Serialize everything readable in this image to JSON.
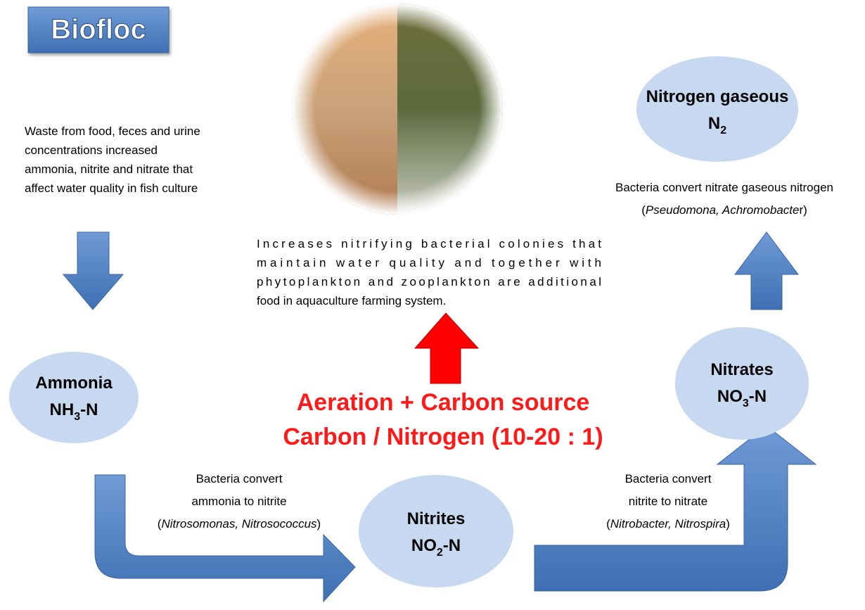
{
  "title": "Biofloc",
  "intro": [
    "Waste from food, feces and urine",
    "concentrations increased",
    "ammonia, nitrite and nitrate that",
    "affect water quality in fish culture"
  ],
  "center_text": [
    "Increases nitrifying bacterial colonies that",
    "maintain water quality and together with",
    "phytoplankton and zooplankton are additional",
    "food in aquaculture farming system."
  ],
  "conditions": [
    "Aeration + Carbon source",
    "Carbon / Nitrogen (10-20 : 1)"
  ],
  "nodes": [
    {
      "name": "Ammonia",
      "formula": [
        "NH",
        "3",
        "-N"
      ]
    },
    {
      "name": "Nitrites",
      "formula": [
        "NO",
        "2",
        "-N"
      ]
    },
    {
      "name": "Nitrates",
      "formula": [
        "NO",
        "3",
        "-N"
      ]
    },
    {
      "name": "Nitrogen gaseous",
      "formula": [
        "N",
        "2"
      ]
    }
  ],
  "steps": [
    {
      "lines": [
        "Bacteria convert",
        "ammonia to nitrite"
      ],
      "bacteria": [
        "(",
        "Nitrosomonas, Nitrosococcus",
        ")"
      ]
    },
    {
      "lines": [
        "Bacteria convert",
        "nitrite to  nitrate"
      ],
      "bacteria": [
        "(",
        "Nitrobacter, Nitrospira",
        ")"
      ]
    },
    {
      "lines": [
        "Bacteria convert nitrate gaseous nitrogen"
      ],
      "bacteria": [
        "(",
        "Pseudomona, Achromobacte",
        "r)"
      ]
    }
  ]
}
